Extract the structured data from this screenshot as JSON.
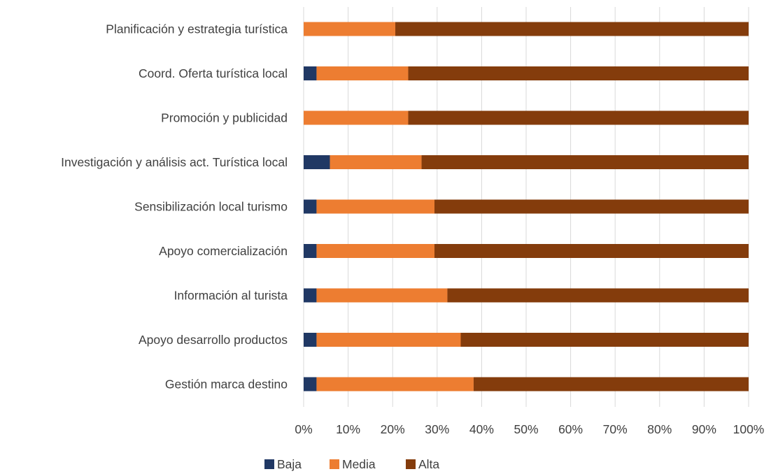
{
  "chart_data": {
    "type": "bar",
    "orientation": "horizontal",
    "stacked": "100%",
    "categories": [
      "Planificación y estrategia turística",
      "Coord. Oferta turística local",
      "Promoción y publicidad",
      "Investigación y análisis act. Turística local",
      "Sensibilización local turismo",
      "Apoyo comercialización",
      "Información al turista",
      "Apoyo desarrollo productos",
      "Gestión marca destino"
    ],
    "series": [
      {
        "name": "Baja",
        "color": "#203864",
        "values": [
          0,
          2.9,
          0,
          5.9,
          2.9,
          2.9,
          2.9,
          2.9,
          2.9
        ]
      },
      {
        "name": "Media",
        "color": "#ed7d31",
        "values": [
          20.6,
          20.6,
          23.5,
          20.6,
          26.5,
          26.5,
          29.4,
          32.4,
          35.3
        ]
      },
      {
        "name": "Alta",
        "color": "#843c0c",
        "values": [
          79.4,
          76.5,
          76.5,
          73.5,
          70.6,
          70.6,
          67.7,
          64.7,
          61.8
        ]
      }
    ],
    "x_ticks": [
      "0%",
      "10%",
      "20%",
      "30%",
      "40%",
      "50%",
      "60%",
      "70%",
      "80%",
      "90%",
      "100%"
    ],
    "xlim": [
      0,
      100
    ],
    "grid": "vertical",
    "legend_position": "bottom",
    "title": "",
    "xlabel": "",
    "ylabel": ""
  }
}
